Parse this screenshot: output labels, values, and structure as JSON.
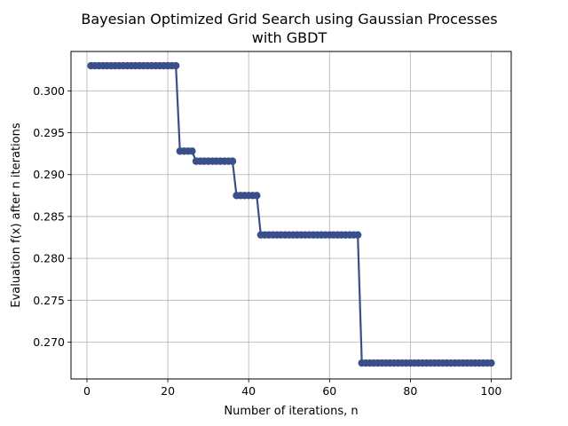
{
  "chart_data": {
    "type": "line",
    "title_line1": "Bayesian Optimized Grid Search using Gaussian Processes",
    "title_line2": "with GBDT",
    "xlabel": "Number of iterations, n",
    "ylabel": "Evaluation f(x) after n iterations",
    "xlim": [
      -3.95,
      104.95
    ],
    "ylim": [
      0.2656,
      0.3047
    ],
    "xticks": [
      0,
      20,
      40,
      60,
      80,
      100
    ],
    "yticks": [
      0.27,
      0.275,
      0.28,
      0.285,
      0.29,
      0.295,
      0.3
    ],
    "ytick_labels": [
      "0.270",
      "0.275",
      "0.280",
      "0.285",
      "0.290",
      "0.295",
      "0.300"
    ],
    "grid": true,
    "line_color": "#3a4f8a",
    "segments": [
      {
        "from": 1,
        "to": 22,
        "value": 0.303
      },
      {
        "from": 23,
        "to": 26,
        "value": 0.2928
      },
      {
        "from": 27,
        "to": 36,
        "value": 0.2916
      },
      {
        "from": 37,
        "to": 42,
        "value": 0.2875
      },
      {
        "from": 43,
        "to": 67,
        "value": 0.2828
      },
      {
        "from": 68,
        "to": 100,
        "value": 0.2675
      }
    ]
  }
}
